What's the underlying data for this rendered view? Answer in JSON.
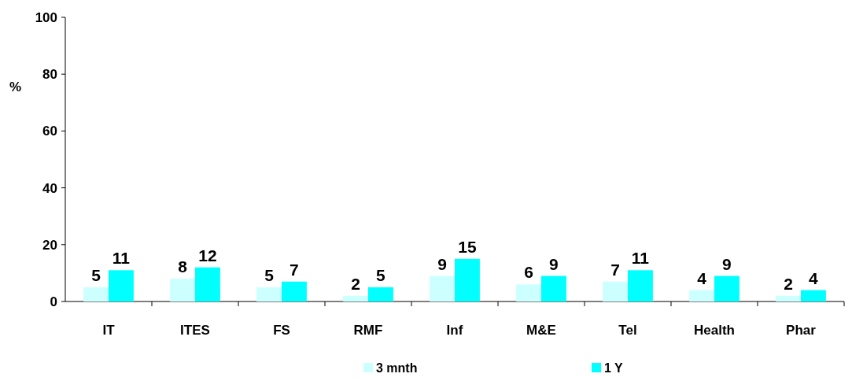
{
  "chart_data": {
    "type": "bar",
    "ylabel": "%",
    "categories": [
      "IT",
      "ITES",
      "FS",
      "RMF",
      "Inf",
      "M&E",
      "Tel",
      "Health",
      "Phar"
    ],
    "series": [
      {
        "name": "3 mnth",
        "color": "#ccffff",
        "values": [
          5,
          8,
          5,
          2,
          9,
          6,
          7,
          4,
          2
        ]
      },
      {
        "name": "1 Y",
        "color": "#00ffff",
        "values": [
          11,
          12,
          7,
          5,
          15,
          9,
          11,
          9,
          4
        ]
      }
    ],
    "ylim": [
      0,
      100
    ],
    "yticks": [
      0,
      20,
      40,
      60,
      80,
      100
    ],
    "data_labels": true,
    "legend": "bottom",
    "grid": false
  }
}
